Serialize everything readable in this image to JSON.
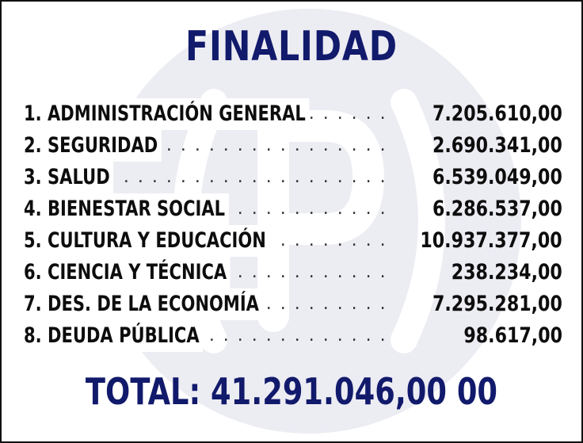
{
  "title": "FINALIDAD",
  "items": [
    {
      "label": "1. ADMINISTRACIÓN GENERAL",
      "amount": "7.205.610,00"
    },
    {
      "label": "2. SEGURIDAD",
      "amount": "2.690.341,00"
    },
    {
      "label": "3. SALUD",
      "amount": "6.539.049,00"
    },
    {
      "label": "4. BIENESTAR SOCIAL",
      "amount": "6.286.537,00"
    },
    {
      "label": "5. CULTURA Y EDUCACIÓN",
      "amount": "10.937.377,00"
    },
    {
      "label": "6. CIENCIA Y TÉCNICA",
      "amount": "238.234,00"
    },
    {
      "label": "7. DES. DE LA ECONOMÍA",
      "amount": "7.295.281,00"
    },
    {
      "label": "8. DEUDA PÚBLICA",
      "amount": "98.617,00"
    }
  ],
  "total": "TOTAL: 41.291.046,00 00",
  "watermark_icon": "p-logo-icon",
  "colors": {
    "title": "#111a6b",
    "text": "#0d0d0d",
    "watermark": "#ececf3"
  }
}
